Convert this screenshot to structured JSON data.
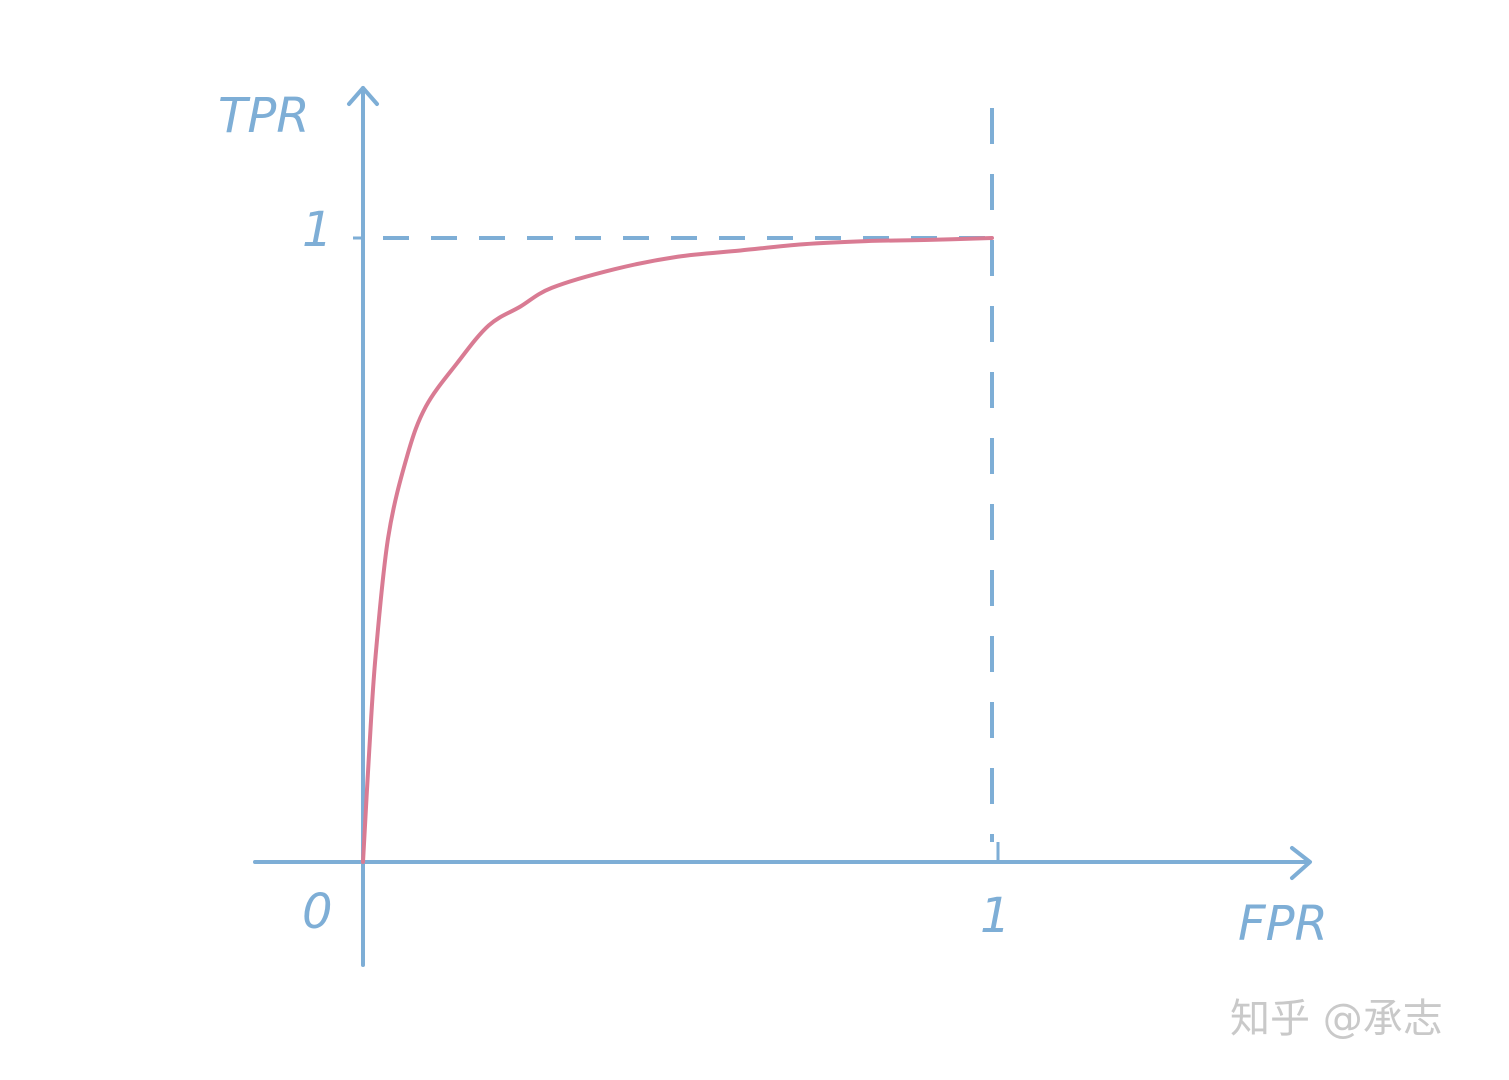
{
  "chart_data": {
    "type": "line",
    "title": "",
    "xlabel": "FPR",
    "ylabel": "TPR",
    "xlim": [
      0,
      1
    ],
    "ylim": [
      0,
      1
    ],
    "origin_label": "0",
    "x_ticks": [
      "1"
    ],
    "y_ticks": [
      "1"
    ],
    "grid": false,
    "reference_lines": [
      {
        "axis": "y",
        "value": 1,
        "style": "dashed"
      },
      {
        "axis": "x",
        "value": 1,
        "style": "dashed"
      }
    ],
    "series": [
      {
        "color": "#d97b93",
        "x": [
          0,
          0.01,
          0.02,
          0.04,
          0.07,
          0.1,
          0.15,
          0.2,
          0.25,
          0.3,
          0.4,
          0.5,
          0.6,
          0.7,
          0.8,
          0.9,
          1.0
        ],
        "y": [
          0,
          0.18,
          0.33,
          0.52,
          0.65,
          0.73,
          0.8,
          0.86,
          0.89,
          0.92,
          0.95,
          0.97,
          0.98,
          0.99,
          0.995,
          0.997,
          1.0
        ]
      }
    ],
    "axis_color": "#7eaed6"
  },
  "watermark": "知乎 @承志"
}
